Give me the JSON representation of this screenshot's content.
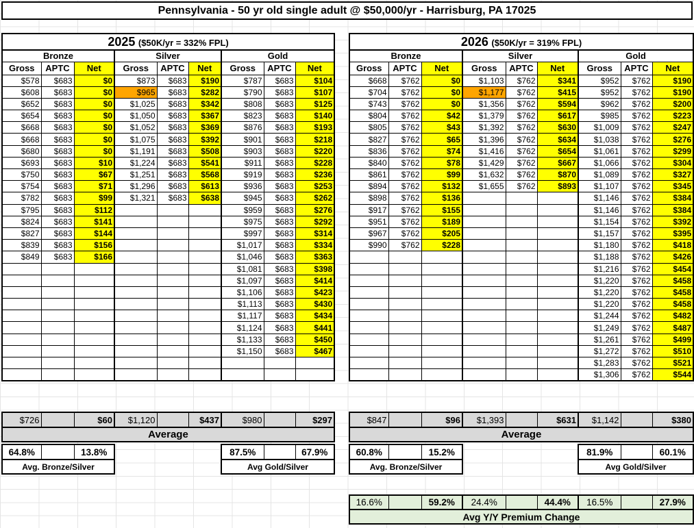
{
  "title": "Pennsylvania - 50 yr old single adult @ $50,000/yr - Harrisburg, PA 17025",
  "columns": [
    "Gross",
    "APTC",
    "Net"
  ],
  "tiers": [
    "Bronze",
    "Silver",
    "Gold"
  ],
  "colors": {
    "net_highlight": "#ffff00",
    "benchmark_highlight": "#ffa500",
    "average_bg": "#d9d9d9",
    "yy_change_bg": "#e2efda"
  },
  "tables": [
    {
      "year": "2025",
      "fpl": "($50K/yr = 332% FPL)",
      "benchmark_cell": {
        "row": 1,
        "col": 3
      },
      "rows": [
        [
          "$578",
          "$683",
          "$0",
          "$873",
          "$683",
          "$190",
          "$787",
          "$683",
          "$104"
        ],
        [
          "$608",
          "$683",
          "$0",
          "$965",
          "$683",
          "$282",
          "$790",
          "$683",
          "$107"
        ],
        [
          "$652",
          "$683",
          "$0",
          "$1,025",
          "$683",
          "$342",
          "$808",
          "$683",
          "$125"
        ],
        [
          "$654",
          "$683",
          "$0",
          "$1,050",
          "$683",
          "$367",
          "$823",
          "$683",
          "$140"
        ],
        [
          "$668",
          "$683",
          "$0",
          "$1,052",
          "$683",
          "$369",
          "$876",
          "$683",
          "$193"
        ],
        [
          "$668",
          "$683",
          "$0",
          "$1,075",
          "$683",
          "$392",
          "$901",
          "$683",
          "$218"
        ],
        [
          "$680",
          "$683",
          "$0",
          "$1,191",
          "$683",
          "$508",
          "$903",
          "$683",
          "$220"
        ],
        [
          "$693",
          "$683",
          "$10",
          "$1,224",
          "$683",
          "$541",
          "$911",
          "$683",
          "$228"
        ],
        [
          "$750",
          "$683",
          "$67",
          "$1,251",
          "$683",
          "$568",
          "$919",
          "$683",
          "$236"
        ],
        [
          "$754",
          "$683",
          "$71",
          "$1,296",
          "$683",
          "$613",
          "$936",
          "$683",
          "$253"
        ],
        [
          "$782",
          "$683",
          "$99",
          "$1,321",
          "$683",
          "$638",
          "$945",
          "$683",
          "$262"
        ],
        [
          "$795",
          "$683",
          "$112",
          "",
          "",
          "",
          "$959",
          "$683",
          "$276"
        ],
        [
          "$824",
          "$683",
          "$141",
          "",
          "",
          "",
          "$975",
          "$683",
          "$292"
        ],
        [
          "$827",
          "$683",
          "$144",
          "",
          "",
          "",
          "$997",
          "$683",
          "$314"
        ],
        [
          "$839",
          "$683",
          "$156",
          "",
          "",
          "",
          "$1,017",
          "$683",
          "$334"
        ],
        [
          "$849",
          "$683",
          "$166",
          "",
          "",
          "",
          "$1,046",
          "$683",
          "$363"
        ],
        [
          "",
          "",
          "",
          "",
          "",
          "",
          "$1,081",
          "$683",
          "$398"
        ],
        [
          "",
          "",
          "",
          "",
          "",
          "",
          "$1,097",
          "$683",
          "$414"
        ],
        [
          "",
          "",
          "",
          "",
          "",
          "",
          "$1,106",
          "$683",
          "$423"
        ],
        [
          "",
          "",
          "",
          "",
          "",
          "",
          "$1,113",
          "$683",
          "$430"
        ],
        [
          "",
          "",
          "",
          "",
          "",
          "",
          "$1,117",
          "$683",
          "$434"
        ],
        [
          "",
          "",
          "",
          "",
          "",
          "",
          "$1,124",
          "$683",
          "$441"
        ],
        [
          "",
          "",
          "",
          "",
          "",
          "",
          "$1,133",
          "$683",
          "$450"
        ],
        [
          "",
          "",
          "",
          "",
          "",
          "",
          "$1,150",
          "$683",
          "$467"
        ],
        [
          "",
          "",
          "",
          "",
          "",
          "",
          "",
          "",
          ""
        ],
        [
          "",
          "",
          "",
          "",
          "",
          "",
          "",
          "",
          ""
        ]
      ],
      "average": [
        "$726",
        "",
        "$60",
        "$1,120",
        "",
        "$437",
        "$980",
        "",
        "$297"
      ],
      "average_label": "Average",
      "bronze_ratio_gross": "64.8%",
      "bronze_ratio_net": "13.8%",
      "gold_ratio_gross": "87.5%",
      "gold_ratio_net": "67.9%",
      "bronze_silver_label": "Avg. Bronze/Silver",
      "gold_silver_label": "Avg Gold/Silver"
    },
    {
      "year": "2026",
      "fpl": "($50K/yr = 319% FPL)",
      "benchmark_cell": {
        "row": 1,
        "col": 3
      },
      "rows": [
        [
          "$668",
          "$762",
          "$0",
          "$1,103",
          "$762",
          "$341",
          "$952",
          "$762",
          "$190"
        ],
        [
          "$704",
          "$762",
          "$0",
          "$1,177",
          "$762",
          "$415",
          "$952",
          "$762",
          "$190"
        ],
        [
          "$743",
          "$762",
          "$0",
          "$1,356",
          "$762",
          "$594",
          "$962",
          "$762",
          "$200"
        ],
        [
          "$804",
          "$762",
          "$42",
          "$1,379",
          "$762",
          "$617",
          "$985",
          "$762",
          "$223"
        ],
        [
          "$805",
          "$762",
          "$43",
          "$1,392",
          "$762",
          "$630",
          "$1,009",
          "$762",
          "$247"
        ],
        [
          "$827",
          "$762",
          "$65",
          "$1,396",
          "$762",
          "$634",
          "$1,038",
          "$762",
          "$276"
        ],
        [
          "$836",
          "$762",
          "$74",
          "$1,416",
          "$762",
          "$654",
          "$1,061",
          "$762",
          "$299"
        ],
        [
          "$840",
          "$762",
          "$78",
          "$1,429",
          "$762",
          "$667",
          "$1,066",
          "$762",
          "$304"
        ],
        [
          "$861",
          "$762",
          "$99",
          "$1,632",
          "$762",
          "$870",
          "$1,089",
          "$762",
          "$327"
        ],
        [
          "$894",
          "$762",
          "$132",
          "$1,655",
          "$762",
          "$893",
          "$1,107",
          "$762",
          "$345"
        ],
        [
          "$898",
          "$762",
          "$136",
          "",
          "",
          "",
          "$1,146",
          "$762",
          "$384"
        ],
        [
          "$917",
          "$762",
          "$155",
          "",
          "",
          "",
          "$1,146",
          "$762",
          "$384"
        ],
        [
          "$951",
          "$762",
          "$189",
          "",
          "",
          "",
          "$1,154",
          "$762",
          "$392"
        ],
        [
          "$967",
          "$762",
          "$205",
          "",
          "",
          "",
          "$1,157",
          "$762",
          "$395"
        ],
        [
          "$990",
          "$762",
          "$228",
          "",
          "",
          "",
          "$1,180",
          "$762",
          "$418"
        ],
        [
          "",
          "",
          "",
          "",
          "",
          "",
          "$1,188",
          "$762",
          "$426"
        ],
        [
          "",
          "",
          "",
          "",
          "",
          "",
          "$1,216",
          "$762",
          "$454"
        ],
        [
          "",
          "",
          "",
          "",
          "",
          "",
          "$1,220",
          "$762",
          "$458"
        ],
        [
          "",
          "",
          "",
          "",
          "",
          "",
          "$1,220",
          "$762",
          "$458"
        ],
        [
          "",
          "",
          "",
          "",
          "",
          "",
          "$1,220",
          "$762",
          "$458"
        ],
        [
          "",
          "",
          "",
          "",
          "",
          "",
          "$1,244",
          "$762",
          "$482"
        ],
        [
          "",
          "",
          "",
          "",
          "",
          "",
          "$1,249",
          "$762",
          "$487"
        ],
        [
          "",
          "",
          "",
          "",
          "",
          "",
          "$1,261",
          "$762",
          "$499"
        ],
        [
          "",
          "",
          "",
          "",
          "",
          "",
          "$1,272",
          "$762",
          "$510"
        ],
        [
          "",
          "",
          "",
          "",
          "",
          "",
          "$1,283",
          "$762",
          "$521"
        ],
        [
          "",
          "",
          "",
          "",
          "",
          "",
          "$1,306",
          "$762",
          "$544"
        ]
      ],
      "average": [
        "$847",
        "",
        "$96",
        "$1,393",
        "",
        "$631",
        "$1,142",
        "",
        "$380"
      ],
      "average_label": "Average",
      "bronze_ratio_gross": "60.8%",
      "bronze_ratio_net": "15.2%",
      "gold_ratio_gross": "81.9%",
      "gold_ratio_net": "60.1%",
      "bronze_silver_label": "Avg. Bronze/Silver",
      "gold_silver_label": "Avg Gold/Silver",
      "yy_values": [
        "16.6%",
        "",
        "59.2%",
        "24.4%",
        "",
        "44.4%",
        "16.5%",
        "",
        "27.9%"
      ],
      "yy_label": "Avg Y/Y Premium Change"
    }
  ]
}
